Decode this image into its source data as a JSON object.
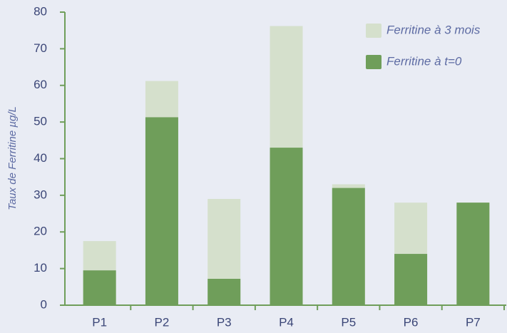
{
  "chart_data": {
    "type": "bar",
    "mode": "overlay",
    "y_label": "Taux de Ferritine µg/L",
    "categories": [
      "P1",
      "P2",
      "P3",
      "P4",
      "P5",
      "P6",
      "P7"
    ],
    "series": [
      {
        "name": "Ferritine à 3 mois",
        "color": "#d5e0cc",
        "values": [
          17.5,
          61.2,
          29,
          76.2,
          33,
          28,
          28
        ]
      },
      {
        "name": "Ferritine à t=0",
        "color": "#6f9e5a",
        "values": [
          9.5,
          51.3,
          7.2,
          43,
          32,
          14,
          28
        ]
      }
    ],
    "ylim": [
      0,
      80
    ],
    "yticks": [
      0,
      10,
      20,
      30,
      40,
      50,
      60,
      70,
      80
    ],
    "axis_color": "#6f9e5a",
    "legend": "upper right"
  }
}
